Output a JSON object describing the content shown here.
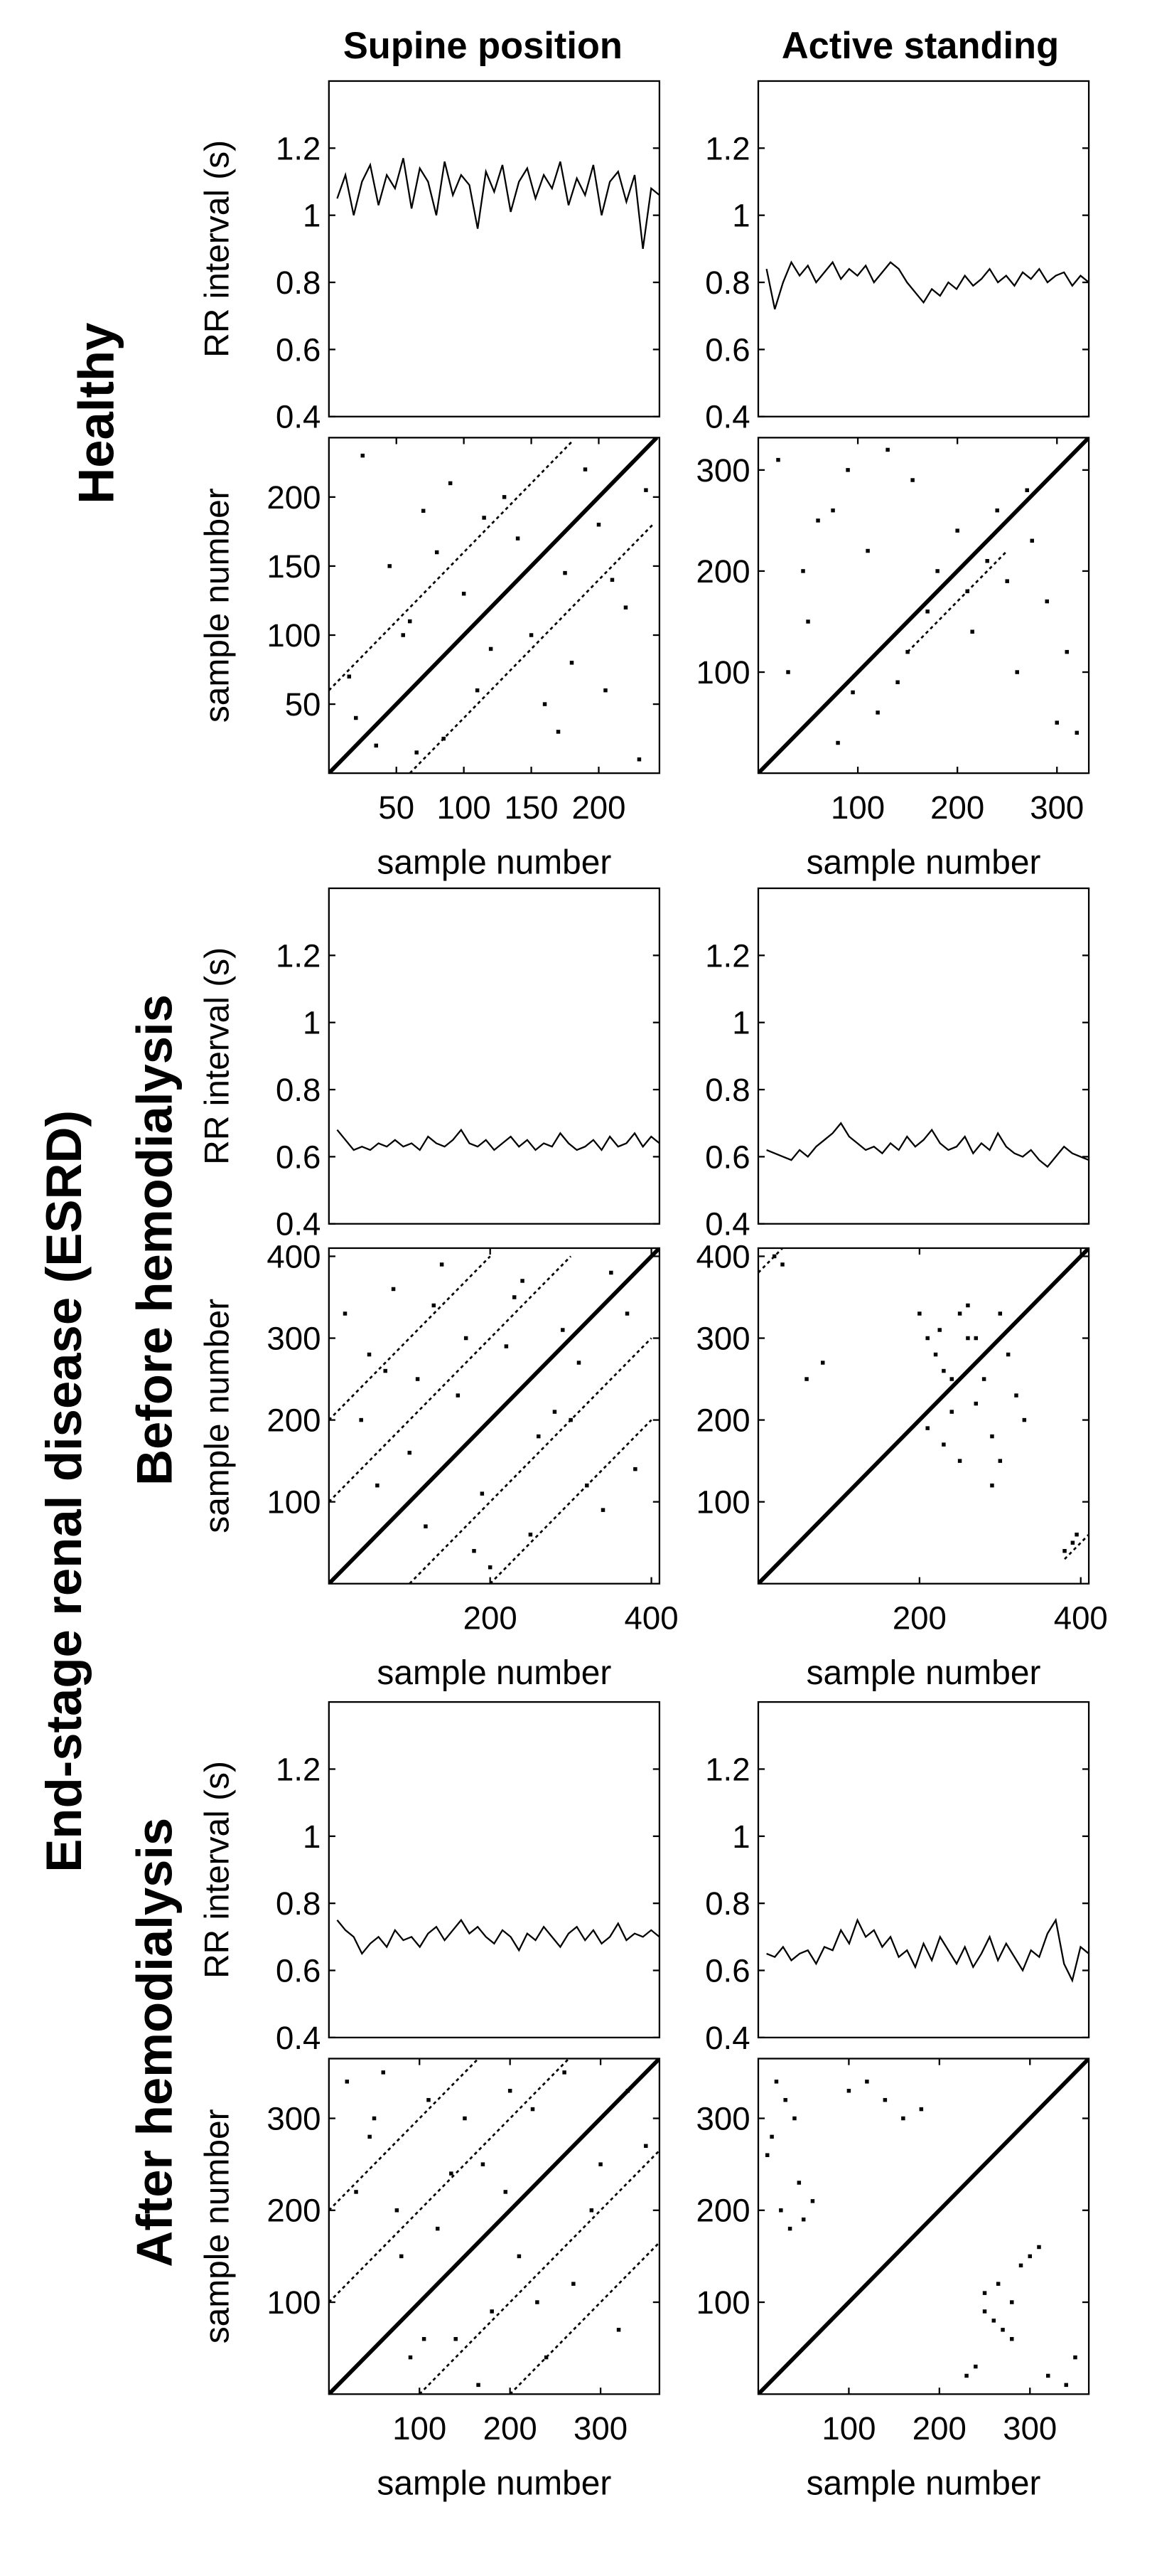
{
  "column_titles": [
    "Supine position",
    "Active standing"
  ],
  "row_labels": {
    "healthy": "Healthy",
    "esrd": "End-stage renal disease (ESRD)",
    "before": "Before hemodialysis",
    "after": "After hemodialysis"
  },
  "chart_data": [
    {
      "type": "line",
      "ylabel": "RR interval (s)",
      "color": "#000000",
      "xlim": [
        0,
        240
      ],
      "ylim": [
        0.4,
        1.4
      ],
      "yticks": [
        0.4,
        0.6,
        0.8,
        1,
        1.2
      ],
      "x": [
        6,
        12,
        18,
        24,
        30,
        36,
        42,
        48,
        54,
        60,
        66,
        72,
        78,
        84,
        90,
        96,
        102,
        108,
        114,
        120,
        126,
        132,
        138,
        144,
        150,
        156,
        162,
        168,
        174,
        180,
        186,
        192,
        198,
        204,
        210,
        216,
        222,
        228,
        234,
        240
      ],
      "values": [
        1.05,
        1.12,
        1.0,
        1.1,
        1.15,
        1.03,
        1.12,
        1.08,
        1.17,
        1.02,
        1.14,
        1.1,
        1.0,
        1.16,
        1.06,
        1.12,
        1.09,
        0.96,
        1.13,
        1.07,
        1.15,
        1.01,
        1.1,
        1.14,
        1.05,
        1.12,
        1.08,
        1.16,
        1.03,
        1.11,
        1.06,
        1.15,
        1.0,
        1.1,
        1.13,
        1.04,
        1.12,
        0.9,
        1.08,
        1.06
      ]
    },
    {
      "type": "line",
      "color": "#000000",
      "xlim": [
        0,
        320
      ],
      "ylim": [
        0.4,
        1.4
      ],
      "yticks": [
        0.4,
        0.6,
        0.8,
        1,
        1.2
      ],
      "x": [
        8,
        16,
        24,
        32,
        40,
        48,
        56,
        64,
        72,
        80,
        88,
        96,
        104,
        112,
        120,
        128,
        136,
        144,
        152,
        160,
        168,
        176,
        184,
        192,
        200,
        208,
        216,
        224,
        232,
        240,
        248,
        256,
        264,
        272,
        280,
        288,
        296,
        304,
        312,
        320
      ],
      "values": [
        0.84,
        0.72,
        0.8,
        0.86,
        0.82,
        0.85,
        0.8,
        0.83,
        0.86,
        0.81,
        0.84,
        0.82,
        0.85,
        0.8,
        0.83,
        0.86,
        0.84,
        0.8,
        0.77,
        0.74,
        0.78,
        0.76,
        0.8,
        0.78,
        0.82,
        0.79,
        0.81,
        0.84,
        0.8,
        0.82,
        0.79,
        0.83,
        0.81,
        0.84,
        0.8,
        0.82,
        0.83,
        0.79,
        0.82,
        0.8
      ]
    },
    {
      "type": "scatter",
      "ylabel": "sample number",
      "xlabel": "sample number",
      "color": "#000000",
      "xlim": [
        0,
        245
      ],
      "ylim": [
        0,
        243
      ],
      "xticks": [
        50,
        100,
        150,
        200
      ],
      "yticks": [
        50,
        100,
        150,
        200
      ],
      "points": {
        "x": [
          20,
          35,
          60,
          80,
          110,
          130,
          150,
          170,
          200,
          220,
          15,
          45,
          90,
          120,
          160,
          190,
          210,
          230,
          70,
          100,
          140,
          180,
          25,
          55,
          85,
          115,
          175,
          205,
          65,
          235
        ],
        "y": [
          40,
          20,
          110,
          160,
          60,
          200,
          100,
          30,
          180,
          120,
          70,
          150,
          210,
          90,
          50,
          220,
          140,
          10,
          190,
          130,
          170,
          80,
          230,
          100,
          25,
          185,
          145,
          60,
          15,
          205
        ]
      },
      "lines": [
        {
          "x": [
            0,
            243
          ],
          "y": [
            0,
            243
          ]
        },
        {
          "x": [
            0,
            180
          ],
          "y": [
            60,
            240
          ]
        },
        {
          "x": [
            60,
            240
          ],
          "y": [
            0,
            180
          ]
        }
      ]
    },
    {
      "type": "scatter",
      "xlabel": "sample number",
      "color": "#000000",
      "xlim": [
        0,
        332
      ],
      "ylim": [
        0,
        332
      ],
      "xticks": [
        100,
        200,
        300
      ],
      "yticks": [
        100,
        200,
        300
      ],
      "points": {
        "x": [
          30,
          60,
          90,
          120,
          150,
          180,
          210,
          240,
          270,
          300,
          20,
          50,
          80,
          110,
          140,
          170,
          200,
          230,
          260,
          290,
          320,
          45,
          95,
          155,
          215,
          275,
          130,
          250,
          310,
          75
        ],
        "y": [
          100,
          250,
          300,
          60,
          120,
          200,
          180,
          260,
          280,
          50,
          310,
          150,
          30,
          220,
          90,
          160,
          240,
          210,
          100,
          170,
          40,
          200,
          80,
          290,
          140,
          230,
          320,
          190,
          120,
          260
        ]
      },
      "lines": [
        {
          "x": [
            0,
            332
          ],
          "y": [
            0,
            332
          ]
        },
        {
          "x": [
            150,
            250
          ],
          "y": [
            120,
            220
          ]
        }
      ]
    },
    {
      "type": "line",
      "ylabel": "RR interval (s)",
      "color": "#000000",
      "xlim": [
        0,
        400
      ],
      "ylim": [
        0.4,
        1.4
      ],
      "yticks": [
        0.4,
        0.6,
        0.8,
        1,
        1.2
      ],
      "x": [
        10,
        20,
        30,
        40,
        50,
        60,
        70,
        80,
        90,
        100,
        110,
        120,
        130,
        140,
        150,
        160,
        170,
        180,
        190,
        200,
        210,
        220,
        230,
        240,
        250,
        260,
        270,
        280,
        290,
        300,
        310,
        320,
        330,
        340,
        350,
        360,
        370,
        380,
        390,
        400
      ],
      "values": [
        0.68,
        0.65,
        0.62,
        0.63,
        0.62,
        0.64,
        0.63,
        0.65,
        0.63,
        0.64,
        0.62,
        0.66,
        0.64,
        0.63,
        0.65,
        0.68,
        0.64,
        0.63,
        0.65,
        0.62,
        0.64,
        0.66,
        0.63,
        0.65,
        0.62,
        0.64,
        0.63,
        0.67,
        0.64,
        0.62,
        0.63,
        0.65,
        0.62,
        0.66,
        0.63,
        0.64,
        0.67,
        0.63,
        0.66,
        0.64
      ]
    },
    {
      "type": "line",
      "color": "#000000",
      "xlim": [
        0,
        400
      ],
      "ylim": [
        0.4,
        1.4
      ],
      "yticks": [
        0.4,
        0.6,
        0.8,
        1,
        1.2
      ],
      "x": [
        10,
        20,
        30,
        40,
        50,
        60,
        70,
        80,
        90,
        100,
        110,
        120,
        130,
        140,
        150,
        160,
        170,
        180,
        190,
        200,
        210,
        220,
        230,
        240,
        250,
        260,
        270,
        280,
        290,
        300,
        310,
        320,
        330,
        340,
        350,
        360,
        370,
        380,
        390,
        400
      ],
      "values": [
        0.62,
        0.61,
        0.6,
        0.59,
        0.62,
        0.6,
        0.63,
        0.65,
        0.67,
        0.7,
        0.66,
        0.64,
        0.62,
        0.63,
        0.61,
        0.64,
        0.62,
        0.66,
        0.63,
        0.65,
        0.68,
        0.64,
        0.62,
        0.63,
        0.66,
        0.61,
        0.64,
        0.62,
        0.67,
        0.63,
        0.61,
        0.6,
        0.62,
        0.59,
        0.57,
        0.6,
        0.63,
        0.61,
        0.6,
        0.59
      ]
    },
    {
      "type": "scatter",
      "ylabel": "sample number",
      "xlabel": "sample number",
      "color": "#000000",
      "xlim": [
        0,
        410
      ],
      "ylim": [
        0,
        410
      ],
      "xticks": [
        200,
        400
      ],
      "yticks": [
        100,
        200,
        300,
        400
      ],
      "points": {
        "x": [
          20,
          50,
          80,
          110,
          140,
          170,
          200,
          230,
          260,
          290,
          320,
          350,
          380,
          40,
          70,
          100,
          130,
          160,
          190,
          220,
          250,
          280,
          310,
          340,
          370,
          60,
          120,
          180,
          240,
          300
        ],
        "y": [
          330,
          280,
          360,
          250,
          390,
          300,
          20,
          350,
          180,
          310,
          120,
          380,
          140,
          200,
          260,
          160,
          340,
          230,
          110,
          290,
          60,
          210,
          270,
          90,
          330,
          120,
          70,
          40,
          370,
          200
        ]
      },
      "lines": [
        {
          "x": [
            0,
            410
          ],
          "y": [
            0,
            410
          ]
        },
        {
          "x": [
            0,
            300
          ],
          "y": [
            100,
            400
          ]
        },
        {
          "x": [
            100,
            400
          ],
          "y": [
            0,
            300
          ]
        },
        {
          "x": [
            0,
            200
          ],
          "y": [
            200,
            400
          ]
        },
        {
          "x": [
            200,
            400
          ],
          "y": [
            0,
            200
          ]
        }
      ]
    },
    {
      "type": "scatter",
      "xlabel": "sample number",
      "color": "#000000",
      "xlim": [
        0,
        410
      ],
      "ylim": [
        0,
        410
      ],
      "xticks": [
        200,
        400
      ],
      "yticks": [
        100,
        200,
        300,
        400
      ],
      "points": {
        "x": [
          200,
          210,
          220,
          230,
          240,
          250,
          260,
          270,
          280,
          290,
          300,
          310,
          320,
          210,
          230,
          250,
          270,
          290,
          60,
          80,
          20,
          30,
          390,
          395,
          380,
          240,
          260,
          225,
          300,
          330
        ],
        "y": [
          330,
          300,
          280,
          260,
          250,
          330,
          300,
          220,
          250,
          180,
          150,
          280,
          230,
          190,
          170,
          150,
          300,
          120,
          250,
          270,
          400,
          390,
          50,
          60,
          40,
          210,
          340,
          310,
          330,
          200
        ]
      },
      "lines": [
        {
          "x": [
            0,
            410
          ],
          "y": [
            0,
            410
          ]
        },
        {
          "x": [
            0,
            30
          ],
          "y": [
            380,
            410
          ]
        },
        {
          "x": [
            380,
            410
          ],
          "y": [
            30,
            60
          ]
        }
      ]
    },
    {
      "type": "line",
      "ylabel": "RR interval (s)",
      "color": "#000000",
      "xlim": [
        0,
        360
      ],
      "ylim": [
        0.4,
        1.4
      ],
      "yticks": [
        0.4,
        0.6,
        0.8,
        1,
        1.2
      ],
      "x": [
        9,
        18,
        27,
        36,
        45,
        54,
        63,
        72,
        81,
        90,
        99,
        108,
        117,
        126,
        135,
        144,
        153,
        162,
        171,
        180,
        189,
        198,
        207,
        216,
        225,
        234,
        243,
        252,
        261,
        270,
        279,
        288,
        297,
        306,
        315,
        324,
        333,
        342,
        351,
        360
      ],
      "values": [
        0.75,
        0.72,
        0.7,
        0.65,
        0.68,
        0.7,
        0.67,
        0.72,
        0.69,
        0.7,
        0.67,
        0.71,
        0.73,
        0.69,
        0.72,
        0.75,
        0.71,
        0.73,
        0.7,
        0.68,
        0.72,
        0.7,
        0.66,
        0.71,
        0.69,
        0.73,
        0.7,
        0.67,
        0.71,
        0.73,
        0.69,
        0.72,
        0.68,
        0.7,
        0.74,
        0.69,
        0.71,
        0.7,
        0.72,
        0.7
      ]
    },
    {
      "type": "line",
      "color": "#000000",
      "xlim": [
        0,
        360
      ],
      "ylim": [
        0.4,
        1.4
      ],
      "yticks": [
        0.4,
        0.6,
        0.8,
        1,
        1.2
      ],
      "x": [
        9,
        18,
        27,
        36,
        45,
        54,
        63,
        72,
        81,
        90,
        99,
        108,
        117,
        126,
        135,
        144,
        153,
        162,
        171,
        180,
        189,
        198,
        207,
        216,
        225,
        234,
        243,
        252,
        261,
        270,
        279,
        288,
        297,
        306,
        315,
        324,
        333,
        342,
        351,
        360
      ],
      "values": [
        0.65,
        0.64,
        0.67,
        0.63,
        0.65,
        0.66,
        0.62,
        0.67,
        0.66,
        0.72,
        0.68,
        0.75,
        0.7,
        0.72,
        0.67,
        0.7,
        0.64,
        0.66,
        0.61,
        0.68,
        0.63,
        0.7,
        0.66,
        0.62,
        0.67,
        0.61,
        0.65,
        0.7,
        0.63,
        0.68,
        0.64,
        0.6,
        0.66,
        0.64,
        0.71,
        0.75,
        0.62,
        0.57,
        0.67,
        0.65
      ]
    },
    {
      "type": "scatter",
      "ylabel": "sample number",
      "xlabel": "sample number",
      "color": "#000000",
      "xlim": [
        0,
        365
      ],
      "ylim": [
        0,
        365
      ],
      "xticks": [
        100,
        200,
        300
      ],
      "yticks": [
        100,
        200,
        300
      ],
      "points": {
        "x": [
          20,
          50,
          80,
          110,
          140,
          170,
          200,
          230,
          260,
          290,
          320,
          350,
          30,
          60,
          90,
          120,
          150,
          180,
          210,
          240,
          270,
          300,
          330,
          45,
          75,
          105,
          135,
          165,
          195,
          225
        ],
        "y": [
          340,
          300,
          150,
          320,
          60,
          250,
          330,
          100,
          350,
          200,
          70,
          270,
          220,
          350,
          40,
          180,
          300,
          90,
          150,
          40,
          120,
          250,
          330,
          280,
          200,
          60,
          240,
          10,
          220,
          310
        ]
      },
      "lines": [
        {
          "x": [
            0,
            365
          ],
          "y": [
            0,
            365
          ]
        },
        {
          "x": [
            0,
            265
          ],
          "y": [
            100,
            365
          ]
        },
        {
          "x": [
            100,
            365
          ],
          "y": [
            0,
            265
          ]
        },
        {
          "x": [
            0,
            165
          ],
          "y": [
            200,
            365
          ]
        },
        {
          "x": [
            200,
            365
          ],
          "y": [
            0,
            165
          ]
        }
      ]
    },
    {
      "type": "scatter",
      "xlabel": "sample number",
      "color": "#000000",
      "xlim": [
        0,
        365
      ],
      "ylim": [
        0,
        365
      ],
      "xticks": [
        100,
        200,
        300
      ],
      "yticks": [
        100,
        200,
        300
      ],
      "points": {
        "x": [
          20,
          30,
          40,
          25,
          35,
          50,
          60,
          45,
          100,
          120,
          140,
          160,
          180,
          250,
          260,
          270,
          280,
          250,
          230,
          290,
          300,
          310,
          320,
          340,
          350,
          15,
          10,
          280,
          265,
          240
        ],
        "y": [
          340,
          320,
          300,
          200,
          180,
          190,
          210,
          230,
          330,
          340,
          320,
          300,
          310,
          90,
          80,
          70,
          60,
          110,
          20,
          140,
          150,
          160,
          20,
          10,
          40,
          280,
          260,
          100,
          120,
          30
        ]
      },
      "lines": [
        {
          "x": [
            0,
            365
          ],
          "y": [
            0,
            365
          ]
        }
      ]
    }
  ]
}
